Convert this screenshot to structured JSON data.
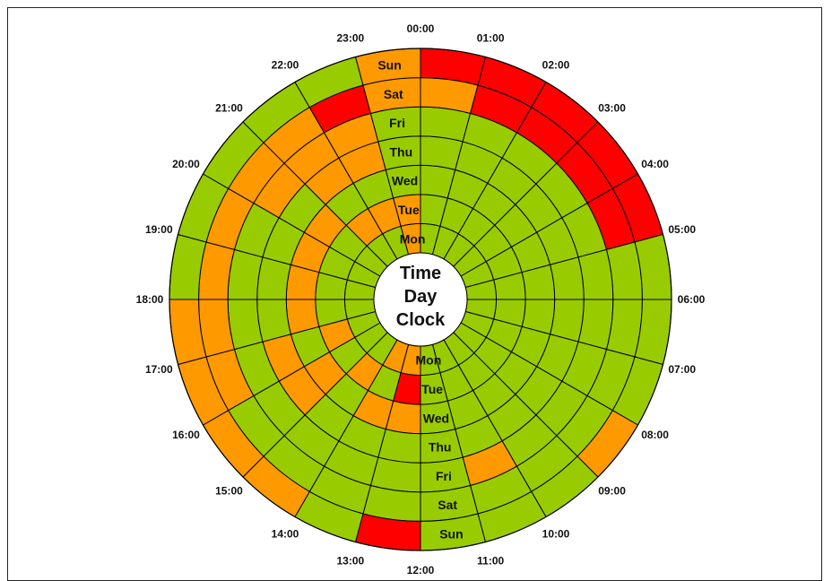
{
  "chart_data": {
    "type": "heatmap",
    "subtype": "radial-clock",
    "title": "Time Day Clock",
    "title_lines": [
      "Time",
      "Day",
      "Clock"
    ],
    "hours": [
      "00:00",
      "01:00",
      "02:00",
      "03:00",
      "04:00",
      "05:00",
      "06:00",
      "07:00",
      "08:00",
      "09:00",
      "10:00",
      "11:00",
      "12:00",
      "13:00",
      "14:00",
      "15:00",
      "16:00",
      "17:00",
      "18:00",
      "19:00",
      "20:00",
      "21:00",
      "22:00",
      "23:00"
    ],
    "days": [
      "Mon",
      "Tue",
      "Wed",
      "Thu",
      "Fri",
      "Sat",
      "Sun"
    ],
    "legend_colors": {
      "G": "#99cc00",
      "O": "#ff9900",
      "R": "#ff0000"
    },
    "grid_line_color": "#000000",
    "cells": [
      [
        "G",
        "G",
        "G",
        "G",
        "G",
        "G",
        "G",
        "G",
        "G",
        "G",
        "G",
        "G",
        "O",
        "O",
        "G",
        "G",
        "G",
        "G",
        "G",
        "G",
        "G",
        "G",
        "G",
        "O"
      ],
      [
        "G",
        "G",
        "G",
        "G",
        "G",
        "G",
        "G",
        "G",
        "G",
        "G",
        "G",
        "G",
        "R",
        "G",
        "O",
        "G",
        "O",
        "G",
        "G",
        "G",
        "G",
        "O",
        "O",
        "O"
      ],
      [
        "G",
        "G",
        "G",
        "G",
        "G",
        "G",
        "G",
        "G",
        "G",
        "G",
        "G",
        "G",
        "O",
        "O",
        "G",
        "O",
        "G",
        "O",
        "O",
        "O",
        "O",
        "G",
        "G",
        "G"
      ],
      [
        "G",
        "G",
        "G",
        "G",
        "G",
        "G",
        "G",
        "G",
        "G",
        "G",
        "G",
        "G",
        "G",
        "G",
        "G",
        "O",
        "O",
        "G",
        "G",
        "G",
        "G",
        "O",
        "O",
        "G"
      ],
      [
        "G",
        "G",
        "G",
        "G",
        "G",
        "G",
        "G",
        "G",
        "G",
        "G",
        "O",
        "G",
        "G",
        "G",
        "G",
        "G",
        "G",
        "G",
        "G",
        "G",
        "O",
        "O",
        "O",
        "G"
      ],
      [
        "O",
        "R",
        "R",
        "R",
        "R",
        "G",
        "G",
        "G",
        "G",
        "G",
        "G",
        "G",
        "G",
        "G",
        "G",
        "G",
        "O",
        "O",
        "O",
        "O",
        "O",
        "O",
        "R",
        "O"
      ],
      [
        "R",
        "R",
        "R",
        "R",
        "R",
        "G",
        "G",
        "G",
        "O",
        "G",
        "G",
        "G",
        "R",
        "G",
        "O",
        "O",
        "O",
        "O",
        "G",
        "G",
        "G",
        "G",
        "G",
        "O"
      ]
    ]
  }
}
